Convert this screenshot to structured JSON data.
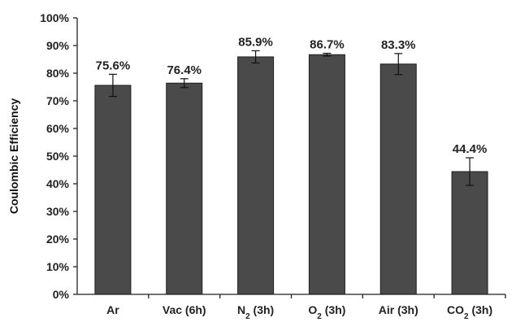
{
  "chart_data": {
    "type": "bar",
    "title": "",
    "xlabel": "",
    "ylabel": "Coulombic Efficiency",
    "ylim": [
      0,
      100
    ],
    "yticks": [
      "0%",
      "10%",
      "20%",
      "30%",
      "40%",
      "50%",
      "60%",
      "70%",
      "80%",
      "90%",
      "100%"
    ],
    "grid": false,
    "categories": [
      {
        "main": "Ar",
        "sub": "",
        "rest": ""
      },
      {
        "main": "Vac (6h)",
        "sub": "",
        "rest": ""
      },
      {
        "main": "N",
        "sub": "2",
        "rest": " (3h)"
      },
      {
        "main": "O",
        "sub": "2",
        "rest": " (3h)"
      },
      {
        "main": "Air (3h)",
        "sub": "",
        "rest": ""
      },
      {
        "main": "CO",
        "sub": "2",
        "rest": " (3h)"
      }
    ],
    "values": [
      75.6,
      76.4,
      85.9,
      86.7,
      83.3,
      44.4
    ],
    "errors": [
      4.0,
      1.6,
      2.2,
      0.5,
      3.8,
      5.0
    ],
    "data_labels": [
      "75.6%",
      "76.4%",
      "85.9%",
      "86.7%",
      "83.3%",
      "44.4%"
    ],
    "bar_color": "#4a4a4a"
  }
}
